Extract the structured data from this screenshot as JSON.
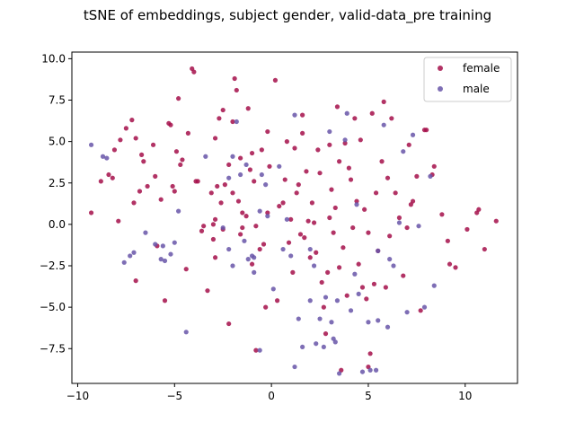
{
  "chart_data": {
    "type": "scatter",
    "title": "tSNE of embeddings, subject gender, valid-data_pre training",
    "xlabel": "",
    "ylabel": "",
    "xlim": [
      -10.3,
      12.7
    ],
    "ylim": [
      -9.6,
      10.4
    ],
    "xticks": [
      -10,
      -5,
      0,
      5,
      10
    ],
    "yticks": [
      -7.5,
      -5.0,
      -2.5,
      0.0,
      2.5,
      5.0,
      7.5,
      10.0
    ],
    "xtick_labels": [
      "−10",
      "−5",
      "0",
      "5",
      "10"
    ],
    "ytick_labels": [
      "−7.5",
      "−5.0",
      "−2.5",
      "0.0",
      "2.5",
      "5.0",
      "7.5",
      "10.0"
    ],
    "grid": false,
    "legend_position": "top-right",
    "series": [
      {
        "name": "female",
        "color": "#a50f4a",
        "points": [
          [
            -9.3,
            0.7
          ],
          [
            -8.8,
            2.6
          ],
          [
            -8.4,
            3.0
          ],
          [
            -8.2,
            2.8
          ],
          [
            -8.1,
            4.5
          ],
          [
            -7.9,
            0.2
          ],
          [
            -7.8,
            5.1
          ],
          [
            -7.5,
            5.8
          ],
          [
            -7.2,
            6.3
          ],
          [
            -7.1,
            1.3
          ],
          [
            -7.0,
            5.2
          ],
          [
            -7.0,
            -3.4
          ],
          [
            -6.8,
            2.0
          ],
          [
            -6.7,
            4.2
          ],
          [
            -6.6,
            3.8
          ],
          [
            -6.4,
            2.3
          ],
          [
            -6.1,
            4.8
          ],
          [
            -6.0,
            2.9
          ],
          [
            -5.9,
            -1.3
          ],
          [
            -5.7,
            1.5
          ],
          [
            -5.5,
            -4.6
          ],
          [
            -5.3,
            6.1
          ],
          [
            -5.2,
            6.0
          ],
          [
            -5.1,
            2.3
          ],
          [
            -5.0,
            2.0
          ],
          [
            -4.9,
            4.4
          ],
          [
            -4.8,
            7.6
          ],
          [
            -4.7,
            3.6
          ],
          [
            -4.6,
            3.9
          ],
          [
            -4.4,
            -2.7
          ],
          [
            -4.3,
            5.5
          ],
          [
            -4.1,
            9.4
          ],
          [
            -4.0,
            9.2
          ],
          [
            -3.9,
            2.6
          ],
          [
            -3.8,
            2.6
          ],
          [
            -3.6,
            -0.4
          ],
          [
            -3.5,
            -0.1
          ],
          [
            -3.3,
            -4.0
          ],
          [
            -3.1,
            1.9
          ],
          [
            -3.0,
            0.0
          ],
          [
            -3.0,
            -0.9
          ],
          [
            -2.9,
            -2.0
          ],
          [
            -2.9,
            0.3
          ],
          [
            -2.9,
            5.2
          ],
          [
            -2.8,
            2.3
          ],
          [
            -2.7,
            6.4
          ],
          [
            -2.6,
            1.3
          ],
          [
            -2.5,
            -0.3
          ],
          [
            -2.5,
            6.9
          ],
          [
            -2.4,
            2.4
          ],
          [
            -2.2,
            -6.0
          ],
          [
            -2.2,
            3.6
          ],
          [
            -2.0,
            6.2
          ],
          [
            -2.0,
            1.9
          ],
          [
            -1.9,
            8.8
          ],
          [
            -1.8,
            8.1
          ],
          [
            -1.7,
            1.4
          ],
          [
            -1.6,
            -0.6
          ],
          [
            -1.5,
            0.7
          ],
          [
            -1.5,
            -0.2
          ],
          [
            -1.3,
            0.5
          ],
          [
            -1.2,
            7.0
          ],
          [
            -1.1,
            3.3
          ],
          [
            -1.0,
            -2.4
          ],
          [
            -1.0,
            4.3
          ],
          [
            -0.9,
            2.6
          ],
          [
            -0.8,
            -7.6
          ],
          [
            -0.8,
            -0.1
          ],
          [
            -0.6,
            -1.5
          ],
          [
            -0.5,
            4.5
          ],
          [
            -0.4,
            -1.2
          ],
          [
            -0.3,
            -5.0
          ],
          [
            -0.2,
            5.6
          ],
          [
            -0.2,
            0.7
          ],
          [
            0.2,
            8.7
          ],
          [
            0.3,
            -4.6
          ],
          [
            0.4,
            1.1
          ],
          [
            0.6,
            1.3
          ],
          [
            0.7,
            2.7
          ],
          [
            0.8,
            5.0
          ],
          [
            0.9,
            -1.1
          ],
          [
            1.0,
            0.3
          ],
          [
            1.1,
            -2.9
          ],
          [
            1.2,
            4.6
          ],
          [
            1.3,
            1.9
          ],
          [
            1.4,
            2.4
          ],
          [
            1.5,
            -0.6
          ],
          [
            1.6,
            6.6
          ],
          [
            1.7,
            -0.8
          ],
          [
            1.8,
            3.2
          ],
          [
            1.9,
            0.2
          ],
          [
            2.0,
            -2.0
          ],
          [
            2.1,
            1.3
          ],
          [
            2.2,
            0.1
          ],
          [
            2.3,
            -1.7
          ],
          [
            2.4,
            4.5
          ],
          [
            2.5,
            3.1
          ],
          [
            2.6,
            -3.5
          ],
          [
            2.7,
            -5.0
          ],
          [
            2.8,
            -6.6
          ],
          [
            3.0,
            0.4
          ],
          [
            3.0,
            4.8
          ],
          [
            3.1,
            2.1
          ],
          [
            3.2,
            -0.5
          ],
          [
            3.3,
            1.0
          ],
          [
            3.4,
            7.1
          ],
          [
            3.5,
            -2.6
          ],
          [
            3.5,
            3.8
          ],
          [
            3.6,
            -8.8
          ],
          [
            3.7,
            -1.4
          ],
          [
            3.8,
            4.9
          ],
          [
            3.9,
            -4.3
          ],
          [
            4.0,
            3.4
          ],
          [
            4.1,
            2.7
          ],
          [
            4.2,
            -0.2
          ],
          [
            4.3,
            6.4
          ],
          [
            4.4,
            1.4
          ],
          [
            4.5,
            -2.4
          ],
          [
            4.6,
            5.1
          ],
          [
            4.7,
            -3.8
          ],
          [
            4.8,
            0.9
          ],
          [
            4.9,
            -4.5
          ],
          [
            5.0,
            -8.6
          ],
          [
            5.1,
            -7.8
          ],
          [
            5.2,
            6.7
          ],
          [
            5.3,
            -3.6
          ],
          [
            5.4,
            1.9
          ],
          [
            5.5,
            -1.6
          ],
          [
            5.7,
            3.8
          ],
          [
            5.8,
            7.4
          ],
          [
            5.9,
            -3.8
          ],
          [
            6.0,
            2.8
          ],
          [
            6.1,
            -0.7
          ],
          [
            6.2,
            6.4
          ],
          [
            6.4,
            1.9
          ],
          [
            6.6,
            0.4
          ],
          [
            6.8,
            -3.1
          ],
          [
            7.0,
            -0.2
          ],
          [
            7.1,
            4.8
          ],
          [
            7.2,
            1.2
          ],
          [
            7.5,
            2.9
          ],
          [
            7.7,
            -5.2
          ],
          [
            7.9,
            5.7
          ],
          [
            8.0,
            5.7
          ],
          [
            8.3,
            3.0
          ],
          [
            8.4,
            3.5
          ],
          [
            8.8,
            0.6
          ],
          [
            9.1,
            -1.0
          ],
          [
            9.2,
            -2.4
          ],
          [
            9.5,
            -2.6
          ],
          [
            10.1,
            -0.3
          ],
          [
            10.6,
            0.7
          ],
          [
            10.7,
            0.9
          ],
          [
            11.0,
            -1.5
          ],
          [
            11.6,
            0.2
          ],
          [
            7.3,
            1.4
          ],
          [
            5.0,
            -0.5
          ],
          [
            -0.1,
            3.5
          ],
          [
            -1.6,
            4.0
          ],
          [
            2.9,
            -2.9
          ],
          [
            1.6,
            5.5
          ]
        ]
      },
      {
        "name": "male",
        "color": "#6755a8",
        "points": [
          [
            -9.3,
            4.8
          ],
          [
            -8.7,
            4.1
          ],
          [
            -8.5,
            4.0
          ],
          [
            -7.6,
            -2.3
          ],
          [
            -7.3,
            -1.9
          ],
          [
            -7.1,
            -1.7
          ],
          [
            -6.5,
            -0.5
          ],
          [
            -6.0,
            -1.2
          ],
          [
            -5.7,
            -2.1
          ],
          [
            -5.6,
            -1.3
          ],
          [
            -5.5,
            -2.2
          ],
          [
            -5.2,
            -1.8
          ],
          [
            -5.0,
            -1.1
          ],
          [
            -4.8,
            0.8
          ],
          [
            -4.4,
            -6.5
          ],
          [
            -3.4,
            4.1
          ],
          [
            -2.5,
            -0.2
          ],
          [
            -2.2,
            -1.5
          ],
          [
            -2.2,
            2.8
          ],
          [
            -2.0,
            -2.5
          ],
          [
            -2.0,
            4.1
          ],
          [
            -1.8,
            6.2
          ],
          [
            -1.6,
            3.0
          ],
          [
            -1.4,
            -1.0
          ],
          [
            -1.3,
            3.6
          ],
          [
            -1.2,
            -2.1
          ],
          [
            -1.0,
            -1.9
          ],
          [
            -0.9,
            -2.0
          ],
          [
            -0.9,
            -2.9
          ],
          [
            -0.6,
            -7.6
          ],
          [
            -0.5,
            3.0
          ],
          [
            -0.3,
            2.4
          ],
          [
            -0.2,
            0.5
          ],
          [
            0.1,
            -3.9
          ],
          [
            0.4,
            3.5
          ],
          [
            0.6,
            -1.5
          ],
          [
            0.8,
            0.3
          ],
          [
            1.0,
            -1.9
          ],
          [
            1.2,
            -8.6
          ],
          [
            1.2,
            6.6
          ],
          [
            1.4,
            -5.7
          ],
          [
            1.6,
            -7.4
          ],
          [
            2.0,
            -4.6
          ],
          [
            2.2,
            -2.5
          ],
          [
            2.3,
            -7.2
          ],
          [
            2.5,
            -5.7
          ],
          [
            2.7,
            -7.4
          ],
          [
            2.8,
            -4.4
          ],
          [
            3.0,
            5.6
          ],
          [
            3.2,
            -6.9
          ],
          [
            3.3,
            -7.1
          ],
          [
            3.4,
            -4.6
          ],
          [
            3.5,
            -9.0
          ],
          [
            3.8,
            5.1
          ],
          [
            3.9,
            6.7
          ],
          [
            4.1,
            -5.2
          ],
          [
            4.3,
            -3.0
          ],
          [
            4.4,
            1.2
          ],
          [
            4.5,
            -4.2
          ],
          [
            4.7,
            -8.9
          ],
          [
            5.0,
            -5.9
          ],
          [
            5.1,
            -8.8
          ],
          [
            5.4,
            -8.8
          ],
          [
            5.5,
            -5.8
          ],
          [
            5.5,
            -1.6
          ],
          [
            5.8,
            6.0
          ],
          [
            6.0,
            -6.2
          ],
          [
            6.1,
            -2.1
          ],
          [
            6.3,
            -2.5
          ],
          [
            6.6,
            0.1
          ],
          [
            6.8,
            4.4
          ],
          [
            7.0,
            -5.3
          ],
          [
            7.3,
            5.4
          ],
          [
            7.6,
            -0.1
          ],
          [
            7.9,
            -5.0
          ],
          [
            8.2,
            2.9
          ],
          [
            8.4,
            -3.7
          ],
          [
            -0.6,
            0.8
          ],
          [
            2.0,
            -1.5
          ],
          [
            3.1,
            -5.9
          ]
        ]
      }
    ]
  }
}
